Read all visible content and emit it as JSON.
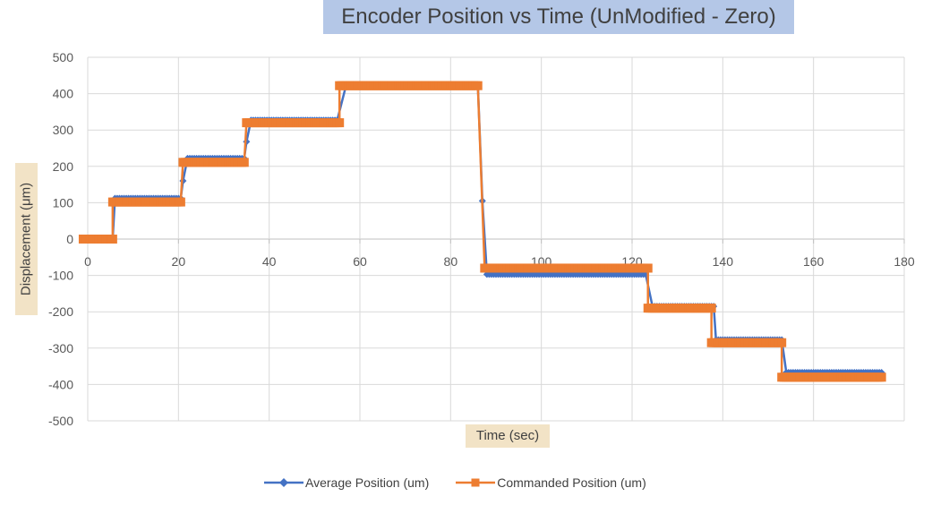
{
  "chart_data": {
    "type": "line",
    "title": "Encoder Position vs Time (UnModified - Zero)",
    "xlabel": "Time (sec)",
    "ylabel": "Displacement  (μm)",
    "xlim": [
      0,
      180
    ],
    "ylim": [
      -500,
      500
    ],
    "x_ticks": [
      0,
      20,
      40,
      60,
      80,
      100,
      120,
      140,
      160,
      180
    ],
    "y_ticks": [
      500,
      400,
      300,
      200,
      100,
      0,
      -100,
      -200,
      -300,
      -400,
      -500
    ],
    "grid": true,
    "legend_position": "bottom",
    "series": [
      {
        "name": "Average Position (um)",
        "color": "#4472c4",
        "marker": "diamond",
        "segments": [
          {
            "x_start": -1,
            "x_end": 5.5,
            "y": 0
          },
          {
            "x_start": 6,
            "x_end": 20.5,
            "y": 112
          },
          {
            "x_start": 22,
            "x_end": 34.5,
            "y": 222
          },
          {
            "x_start": 36,
            "x_end": 55,
            "y": 327
          },
          {
            "x_start": 57,
            "x_end": 86,
            "y": 425
          },
          {
            "x_start": 88,
            "x_end": 123,
            "y": -97
          },
          {
            "x_start": 124.5,
            "x_end": 138,
            "y": -185
          },
          {
            "x_start": 138.5,
            "x_end": 153,
            "y": -277
          },
          {
            "x_start": 154,
            "x_end": 175,
            "y": -367
          }
        ],
        "transitions": [
          {
            "x": 21,
            "y": 160
          },
          {
            "x": 35,
            "y": 268
          },
          {
            "x": 87,
            "y": 105
          }
        ]
      },
      {
        "name": "Commanded Position (um)",
        "color": "#ed7d31",
        "marker": "square",
        "segments": [
          {
            "x_start": -1,
            "x_end": 5.5,
            "y": 0
          },
          {
            "x_start": 5.5,
            "x_end": 20.5,
            "y": 102
          },
          {
            "x_start": 21,
            "x_end": 34.5,
            "y": 211
          },
          {
            "x_start": 35,
            "x_end": 55.5,
            "y": 320
          },
          {
            "x_start": 55.5,
            "x_end": 86,
            "y": 422
          },
          {
            "x_start": 87.5,
            "x_end": 123.5,
            "y": -80
          },
          {
            "x_start": 123.5,
            "x_end": 137.5,
            "y": -190
          },
          {
            "x_start": 137.5,
            "x_end": 153,
            "y": -285
          },
          {
            "x_start": 153,
            "x_end": 175,
            "y": -380
          }
        ]
      }
    ]
  }
}
